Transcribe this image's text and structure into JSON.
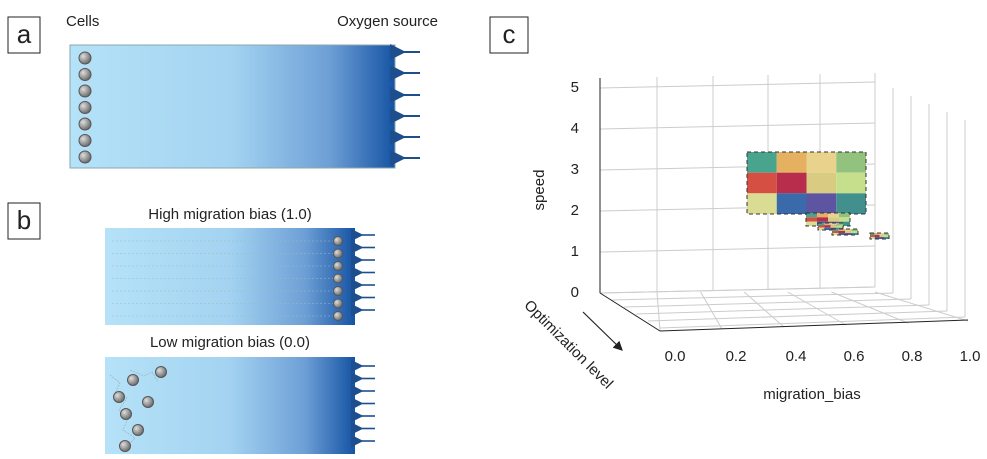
{
  "panel_a": {
    "label": "a",
    "left_label": "Cells",
    "right_label": "Oxygen source"
  },
  "panel_b": {
    "label": "b",
    "top_title": "High migration bias (1.0)",
    "bottom_title": "Low migration bias (0.0)"
  },
  "panel_c": {
    "label": "c",
    "z_label": "speed",
    "x_label": "migration_bias",
    "depth_label": "Optimization level",
    "z_ticks": [
      "0",
      "1",
      "2",
      "3",
      "4",
      "5"
    ],
    "x_ticks": [
      "0.0",
      "0.2",
      "0.4",
      "0.6",
      "0.8",
      "1.0"
    ]
  }
}
